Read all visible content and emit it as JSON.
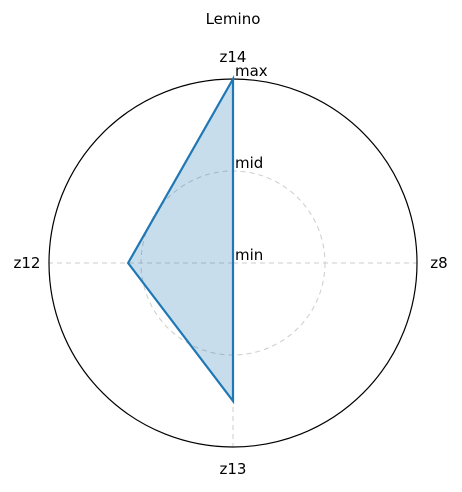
{
  "chart_data": {
    "type": "radar",
    "title": "Lemino",
    "axes": [
      "z14",
      "z8",
      "z13",
      "z12"
    ],
    "series": [
      {
        "values": [
          1.0,
          0.0,
          0.75,
          0.57
        ]
      }
    ],
    "rlim": [
      0,
      1
    ],
    "levels": [
      {
        "label": "min",
        "value": 0.0
      },
      {
        "label": "mid",
        "value": 0.5
      },
      {
        "label": "max",
        "value": 1.0
      }
    ],
    "grid": true,
    "colors": {
      "line": "#1f77b4",
      "fill": "#1f77b4",
      "grid": "#cccccc",
      "frame": "#000000"
    }
  }
}
